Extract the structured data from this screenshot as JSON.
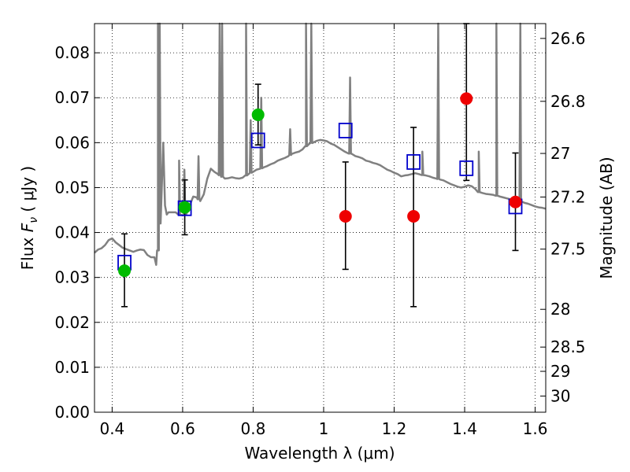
{
  "chart_data": {
    "type": "scatter",
    "xlabel": "Wavelength  λ (μm)",
    "ylabel": "Flux  F_ν  ( μJy )",
    "ylabel_parts": {
      "prefix": "Flux  ",
      "symbol": "F",
      "subscript": "ν",
      "suffix": "  ( μJy )"
    },
    "y2label": "Magnitude (AB)",
    "xlim": [
      0.35,
      1.63
    ],
    "ylim": [
      0.0,
      0.0865
    ],
    "grid": true,
    "xticks": [
      {
        "value": 0.4,
        "label": "0.4"
      },
      {
        "value": 0.6,
        "label": "0.6"
      },
      {
        "value": 0.8,
        "label": "0.8"
      },
      {
        "value": 1.0,
        "label": "1"
      },
      {
        "value": 1.2,
        "label": "1.2"
      },
      {
        "value": 1.4,
        "label": "1.4"
      },
      {
        "value": 1.6,
        "label": "1.6"
      }
    ],
    "yticks": [
      {
        "value": 0.0,
        "label": "0.00"
      },
      {
        "value": 0.01,
        "label": "0.01"
      },
      {
        "value": 0.02,
        "label": "0.02"
      },
      {
        "value": 0.03,
        "label": "0.03"
      },
      {
        "value": 0.04,
        "label": "0.04"
      },
      {
        "value": 0.05,
        "label": "0.05"
      },
      {
        "value": 0.06,
        "label": "0.06"
      },
      {
        "value": 0.07,
        "label": "0.07"
      },
      {
        "value": 0.08,
        "label": "0.08"
      }
    ],
    "y2ticks": [
      {
        "flux": 0.0832,
        "label": "26.6"
      },
      {
        "flux": 0.0692,
        "label": "26.8"
      },
      {
        "flux": 0.0576,
        "label": "27"
      },
      {
        "flux": 0.0479,
        "label": "27.2"
      },
      {
        "flux": 0.0363,
        "label": "27.5"
      },
      {
        "flux": 0.0229,
        "label": "28"
      },
      {
        "flux": 0.0145,
        "label": "28.5"
      },
      {
        "flux": 0.0091,
        "label": "29"
      },
      {
        "flux": 0.0036,
        "label": "30"
      }
    ],
    "series": [
      {
        "marker": "square",
        "color": "#0000cc",
        "points": [
          {
            "x": 0.435,
            "y": 0.0333
          },
          {
            "x": 0.606,
            "y": 0.0454
          },
          {
            "x": 0.814,
            "y": 0.0605
          },
          {
            "x": 1.062,
            "y": 0.0627
          },
          {
            "x": 1.255,
            "y": 0.0557
          },
          {
            "x": 1.405,
            "y": 0.0543
          },
          {
            "x": 1.544,
            "y": 0.0458
          }
        ]
      },
      {
        "marker": "circle",
        "color": "#00bb00",
        "points": [
          {
            "x": 0.435,
            "y": 0.0315,
            "err": [
              0.0235,
              0.0397
            ]
          },
          {
            "x": 0.606,
            "y": 0.0456,
            "err": [
              0.0395,
              0.0517
            ]
          },
          {
            "x": 0.814,
            "y": 0.0662,
            "err": [
              0.0595,
              0.073
            ]
          }
        ]
      },
      {
        "marker": "circle",
        "color": "#ee0000",
        "points": [
          {
            "x": 1.062,
            "y": 0.0436,
            "err": [
              0.0318,
              0.0557
            ]
          },
          {
            "x": 1.255,
            "y": 0.0436,
            "err": [
              0.0235,
              0.0634
            ]
          },
          {
            "x": 1.405,
            "y": 0.0698,
            "err": [
              0.0516,
              0.0865
            ]
          },
          {
            "x": 1.544,
            "y": 0.0468,
            "err": [
              0.036,
              0.0577
            ]
          }
        ]
      }
    ],
    "model_spectrum": {
      "color": "#808080",
      "points": [
        [
          0.35,
          0.0355
        ],
        [
          0.36,
          0.0362
        ],
        [
          0.37,
          0.0365
        ],
        [
          0.38,
          0.0372
        ],
        [
          0.39,
          0.0383
        ],
        [
          0.4,
          0.0387
        ],
        [
          0.41,
          0.0378
        ],
        [
          0.42,
          0.0372
        ],
        [
          0.43,
          0.0366
        ],
        [
          0.44,
          0.0363
        ],
        [
          0.45,
          0.036
        ],
        [
          0.46,
          0.0357
        ],
        [
          0.47,
          0.036
        ],
        [
          0.48,
          0.0362
        ],
        [
          0.49,
          0.0361
        ],
        [
          0.5,
          0.035
        ],
        [
          0.51,
          0.0345
        ],
        [
          0.52,
          0.0345
        ],
        [
          0.525,
          0.0328
        ],
        [
          0.53,
          0.036
        ],
        [
          0.535,
          0.042
        ],
        [
          0.54,
          0.048
        ],
        [
          0.545,
          0.06
        ],
        [
          0.55,
          0.046
        ],
        [
          0.555,
          0.044
        ],
        [
          0.56,
          0.0445
        ],
        [
          0.57,
          0.0445
        ],
        [
          0.58,
          0.0445
        ],
        [
          0.59,
          0.044
        ],
        [
          0.6,
          0.0438
        ],
        [
          0.61,
          0.044
        ],
        [
          0.62,
          0.046
        ],
        [
          0.63,
          0.048
        ],
        [
          0.64,
          0.0478
        ],
        [
          0.65,
          0.047
        ],
        [
          0.66,
          0.0485
        ],
        [
          0.67,
          0.052
        ],
        [
          0.68,
          0.0542
        ],
        [
          0.69,
          0.0535
        ],
        [
          0.7,
          0.053
        ],
        [
          0.71,
          0.0525
        ],
        [
          0.72,
          0.052
        ],
        [
          0.73,
          0.0521
        ],
        [
          0.74,
          0.0523
        ],
        [
          0.75,
          0.0521
        ],
        [
          0.76,
          0.052
        ],
        [
          0.77,
          0.0522
        ],
        [
          0.78,
          0.0527
        ],
        [
          0.79,
          0.0532
        ],
        [
          0.8,
          0.0535
        ],
        [
          0.81,
          0.054
        ],
        [
          0.82,
          0.0542
        ],
        [
          0.83,
          0.0545
        ],
        [
          0.84,
          0.0548
        ],
        [
          0.85,
          0.0552
        ],
        [
          0.86,
          0.0555
        ],
        [
          0.87,
          0.056
        ],
        [
          0.88,
          0.0563
        ],
        [
          0.89,
          0.0566
        ],
        [
          0.9,
          0.057
        ],
        [
          0.91,
          0.0575
        ],
        [
          0.92,
          0.0578
        ],
        [
          0.93,
          0.058
        ],
        [
          0.94,
          0.0585
        ],
        [
          0.95,
          0.0592
        ],
        [
          0.96,
          0.0598
        ],
        [
          0.97,
          0.06
        ],
        [
          0.98,
          0.0604
        ],
        [
          0.99,
          0.0606
        ],
        [
          1.0,
          0.0605
        ],
        [
          1.01,
          0.0603
        ],
        [
          1.02,
          0.0598
        ],
        [
          1.03,
          0.0595
        ],
        [
          1.04,
          0.059
        ],
        [
          1.05,
          0.0585
        ],
        [
          1.06,
          0.058
        ],
        [
          1.07,
          0.0576
        ],
        [
          1.08,
          0.0575
        ],
        [
          1.09,
          0.057
        ],
        [
          1.1,
          0.0568
        ],
        [
          1.11,
          0.0565
        ],
        [
          1.12,
          0.056
        ],
        [
          1.13,
          0.0558
        ],
        [
          1.14,
          0.0555
        ],
        [
          1.15,
          0.0553
        ],
        [
          1.16,
          0.055
        ],
        [
          1.17,
          0.0545
        ],
        [
          1.18,
          0.054
        ],
        [
          1.19,
          0.0537
        ],
        [
          1.2,
          0.0533
        ],
        [
          1.21,
          0.053
        ],
        [
          1.22,
          0.0525
        ],
        [
          1.23,
          0.0527
        ],
        [
          1.24,
          0.0528
        ],
        [
          1.25,
          0.053
        ],
        [
          1.26,
          0.0532
        ],
        [
          1.27,
          0.053
        ],
        [
          1.28,
          0.0528
        ],
        [
          1.29,
          0.0527
        ],
        [
          1.3,
          0.0525
        ],
        [
          1.31,
          0.0522
        ],
        [
          1.32,
          0.052
        ],
        [
          1.33,
          0.0518
        ],
        [
          1.34,
          0.0516
        ],
        [
          1.35,
          0.0512
        ],
        [
          1.36,
          0.0508
        ],
        [
          1.37,
          0.0505
        ],
        [
          1.38,
          0.0502
        ],
        [
          1.39,
          0.05
        ],
        [
          1.4,
          0.0502
        ],
        [
          1.41,
          0.0505
        ],
        [
          1.42,
          0.0503
        ],
        [
          1.43,
          0.0497
        ],
        [
          1.44,
          0.049
        ],
        [
          1.45,
          0.0488
        ],
        [
          1.46,
          0.0486
        ],
        [
          1.47,
          0.0485
        ],
        [
          1.48,
          0.0484
        ],
        [
          1.49,
          0.0482
        ],
        [
          1.5,
          0.048
        ],
        [
          1.51,
          0.0478
        ],
        [
          1.52,
          0.0476
        ],
        [
          1.53,
          0.0474
        ],
        [
          1.54,
          0.0473
        ],
        [
          1.55,
          0.0471
        ],
        [
          1.56,
          0.0469
        ],
        [
          1.57,
          0.0466
        ],
        [
          1.58,
          0.0464
        ],
        [
          1.59,
          0.0461
        ],
        [
          1.6,
          0.0458
        ],
        [
          1.61,
          0.0456
        ],
        [
          1.62,
          0.0455
        ],
        [
          1.63,
          0.0453
        ]
      ],
      "emission_lines": [
        [
          0.53,
          0.0865
        ],
        [
          0.535,
          0.0865
        ],
        [
          0.59,
          0.056
        ],
        [
          0.605,
          0.054
        ],
        [
          0.645,
          0.057
        ],
        [
          0.705,
          0.0865
        ],
        [
          0.712,
          0.0865
        ],
        [
          0.78,
          0.0865
        ],
        [
          0.793,
          0.065
        ],
        [
          0.823,
          0.07
        ],
        [
          0.905,
          0.063
        ],
        [
          0.95,
          0.0865
        ],
        [
          0.965,
          0.0865
        ],
        [
          1.075,
          0.0745
        ],
        [
          1.28,
          0.058
        ],
        [
          1.325,
          0.0865
        ],
        [
          1.44,
          0.058
        ],
        [
          1.49,
          0.0865
        ],
        [
          1.558,
          0.0865
        ]
      ]
    }
  }
}
